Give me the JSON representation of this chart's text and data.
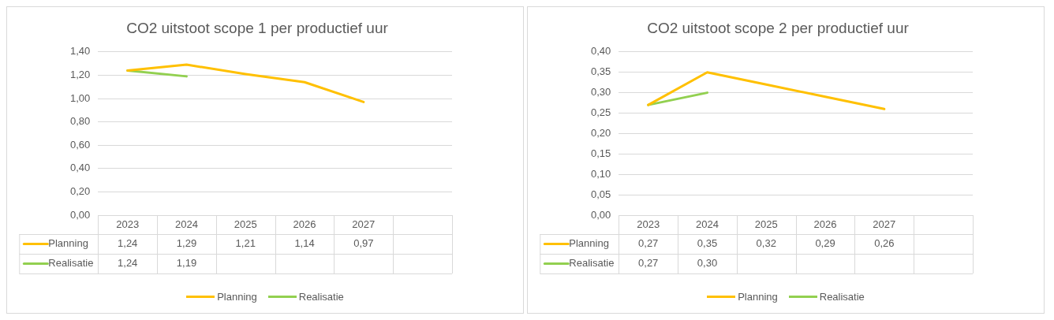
{
  "chart_data": [
    {
      "type": "line",
      "title": "CO2 uitstoot scope 1 per productief uur",
      "categories": [
        "2023",
        "2024",
        "2025",
        "2026",
        "2027",
        null
      ],
      "series": [
        {
          "name": "Planning",
          "color": "#ffc000",
          "values": [
            1.24,
            1.29,
            1.21,
            1.14,
            0.97,
            null
          ],
          "value_labels": [
            "1,24",
            "1,29",
            "1,21",
            "1,14",
            "0,97",
            null
          ]
        },
        {
          "name": "Realisatie",
          "color": "#92d050",
          "values": [
            1.24,
            1.19,
            null,
            null,
            null,
            null
          ],
          "value_labels": [
            "1,24",
            "1,19",
            null,
            null,
            null,
            null
          ]
        }
      ],
      "ylim": [
        0,
        1.4
      ],
      "yticks": [
        {
          "value": 0,
          "label": "0,00"
        },
        {
          "value": 0.2,
          "label": "0,20"
        },
        {
          "value": 0.4,
          "label": "0,40"
        },
        {
          "value": 0.6,
          "label": "0,60"
        },
        {
          "value": 0.8,
          "label": "0,80"
        },
        {
          "value": 1.0,
          "label": "1,00"
        },
        {
          "value": 1.2,
          "label": "1,20"
        },
        {
          "value": 1.4,
          "label": "1,40"
        }
      ],
      "grid": "y",
      "legend": "bottom",
      "marker": "none"
    },
    {
      "type": "line",
      "title": "CO2 uitstoot scope 2 per productief uur",
      "categories": [
        "2023",
        "2024",
        "2025",
        "2026",
        "2027",
        null
      ],
      "series": [
        {
          "name": "Planning",
          "color": "#ffc000",
          "values": [
            0.27,
            0.35,
            0.32,
            0.29,
            0.26,
            null
          ],
          "value_labels": [
            "0,27",
            "0,35",
            "0,32",
            "0,29",
            "0,26",
            null
          ]
        },
        {
          "name": "Realisatie",
          "color": "#92d050",
          "values": [
            0.27,
            0.3,
            null,
            null,
            null,
            null
          ],
          "value_labels": [
            "0,27",
            "0,30",
            null,
            null,
            null,
            null
          ]
        }
      ],
      "ylim": [
        0,
        0.4
      ],
      "yticks": [
        {
          "value": 0,
          "label": "0,00"
        },
        {
          "value": 0.05,
          "label": "0,05"
        },
        {
          "value": 0.1,
          "label": "0,10"
        },
        {
          "value": 0.15,
          "label": "0,15"
        },
        {
          "value": 0.2,
          "label": "0,20"
        },
        {
          "value": 0.25,
          "label": "0,25"
        },
        {
          "value": 0.3,
          "label": "0,30"
        },
        {
          "value": 0.35,
          "label": "0,35"
        },
        {
          "value": 0.4,
          "label": "0,40"
        }
      ],
      "grid": "y",
      "legend": "bottom",
      "marker": "none"
    }
  ]
}
